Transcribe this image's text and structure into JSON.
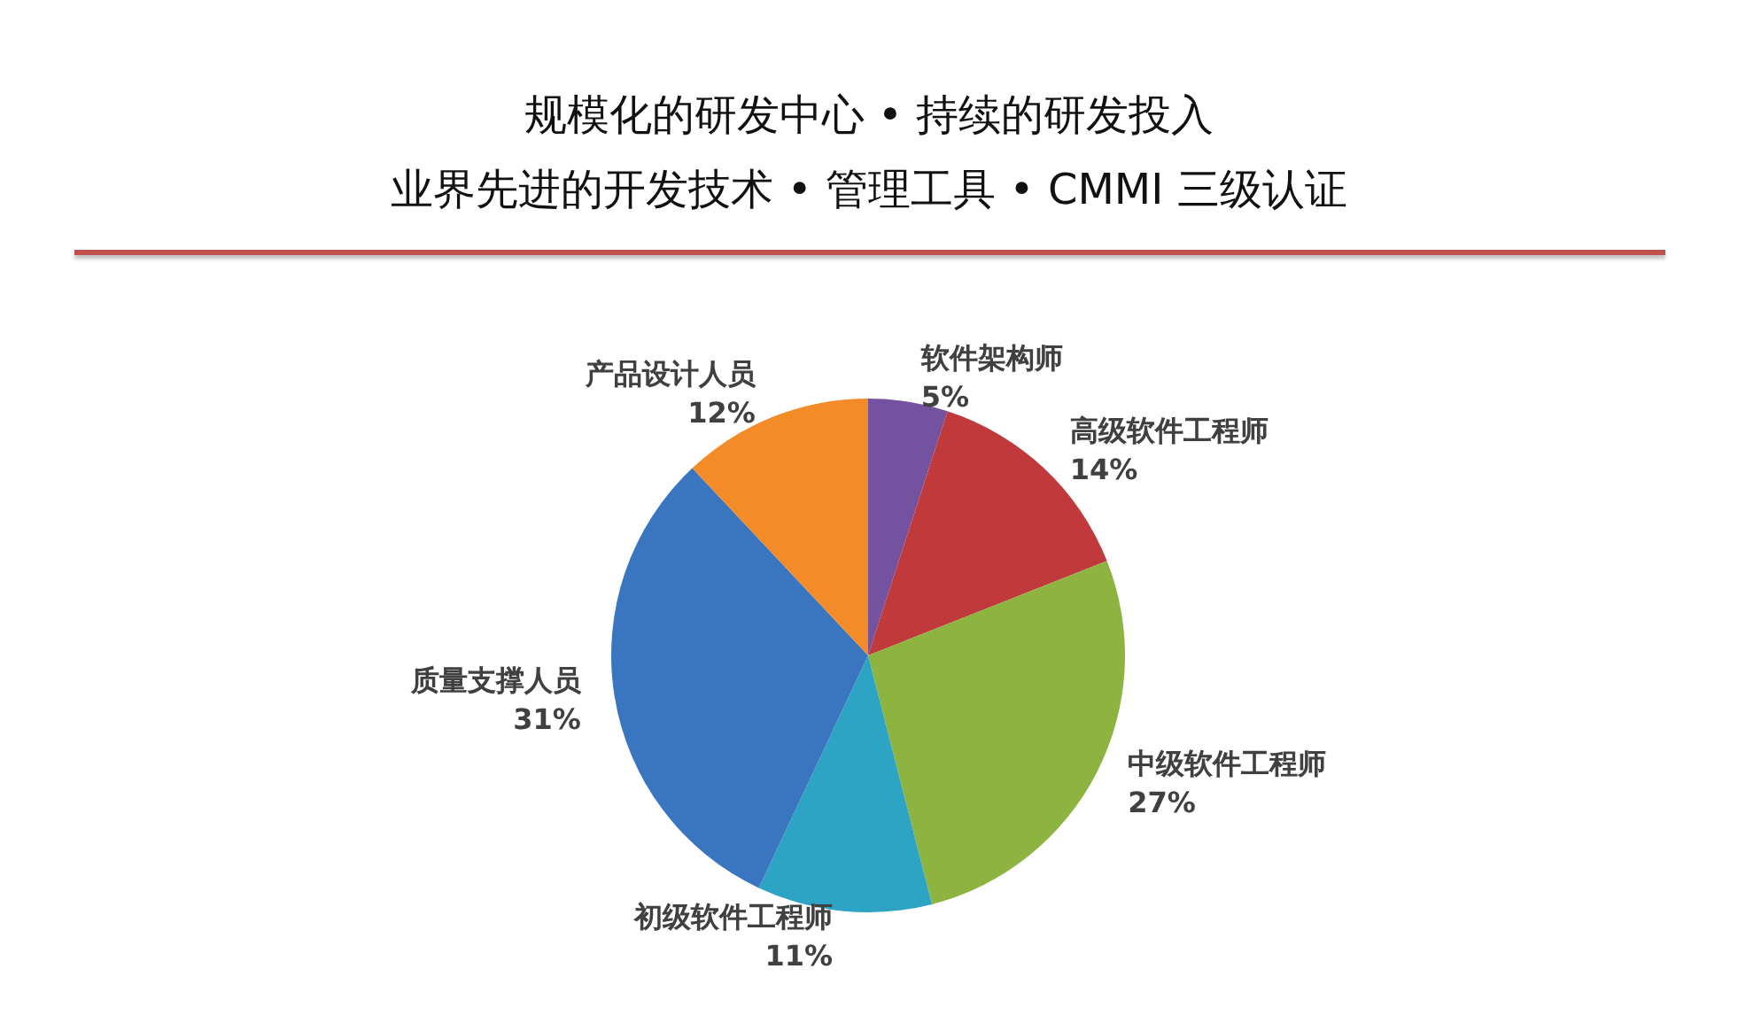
{
  "chart_data": {
    "type": "pie",
    "title": "规模化的研发中心 • 持续的研发投入",
    "subtitle": "业界先进的开发技术 • 管理工具 • CMMI 三级认证",
    "categories": [
      "软件架构师",
      "高级软件工程师",
      "中级软件工程师",
      "初级软件工程师",
      "质量支撑人员",
      "产品设计人员"
    ],
    "values": [
      5,
      14,
      27,
      11,
      31,
      12
    ],
    "colors": [
      "#7452a0",
      "#c03a3b",
      "#8db440",
      "#2ea4c4",
      "#3a75c0",
      "#f48b29"
    ],
    "value_labels": [
      "5%",
      "14%",
      "27%",
      "11%",
      "31%",
      "12%"
    ],
    "legend": false
  }
}
